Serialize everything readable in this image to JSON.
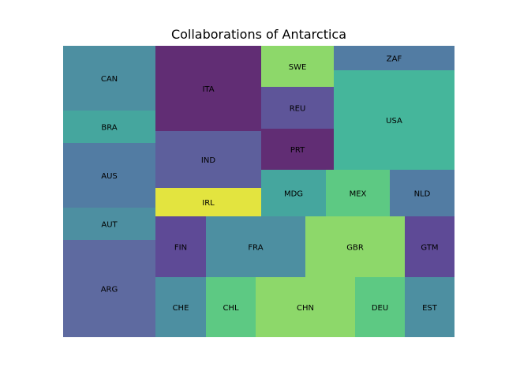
{
  "chart_data": {
    "type": "treemap",
    "title": "Collaborations of Antarctica",
    "cells": [
      {
        "label": "ARG",
        "color": "#5e6aa0"
      },
      {
        "label": "AUT",
        "color": "#4d8fa1"
      },
      {
        "label": "AUS",
        "color": "#527ca3"
      },
      {
        "label": "BRA",
        "color": "#45a69e"
      },
      {
        "label": "CAN",
        "color": "#4d8fa1"
      },
      {
        "label": "CHE",
        "color": "#4d8fa1"
      },
      {
        "label": "FIN",
        "color": "#5e4a96"
      },
      {
        "label": "IRL",
        "color": "#e3e43f"
      },
      {
        "label": "IND",
        "color": "#5d5f9c"
      },
      {
        "label": "ITA",
        "color": "#612d74"
      },
      {
        "label": "CHL",
        "color": "#5dc983"
      },
      {
        "label": "FRA",
        "color": "#4d8fa1"
      },
      {
        "label": "CHN",
        "color": "#8dd86a"
      },
      {
        "label": "GBR",
        "color": "#8dd86a"
      },
      {
        "label": "DEU",
        "color": "#5dc983"
      },
      {
        "label": "EST",
        "color": "#4d8fa1"
      },
      {
        "label": "GTM",
        "color": "#5e4a96"
      },
      {
        "label": "MDG",
        "color": "#45a69e"
      },
      {
        "label": "MEX",
        "color": "#5dc983"
      },
      {
        "label": "NLD",
        "color": "#527ca3"
      },
      {
        "label": "PRT",
        "color": "#612d74"
      },
      {
        "label": "REU",
        "color": "#5e5599"
      },
      {
        "label": "SWE",
        "color": "#8dd86a"
      },
      {
        "label": "USA",
        "color": "#45b69b"
      },
      {
        "label": "ZAF",
        "color": "#527ca3"
      }
    ]
  }
}
